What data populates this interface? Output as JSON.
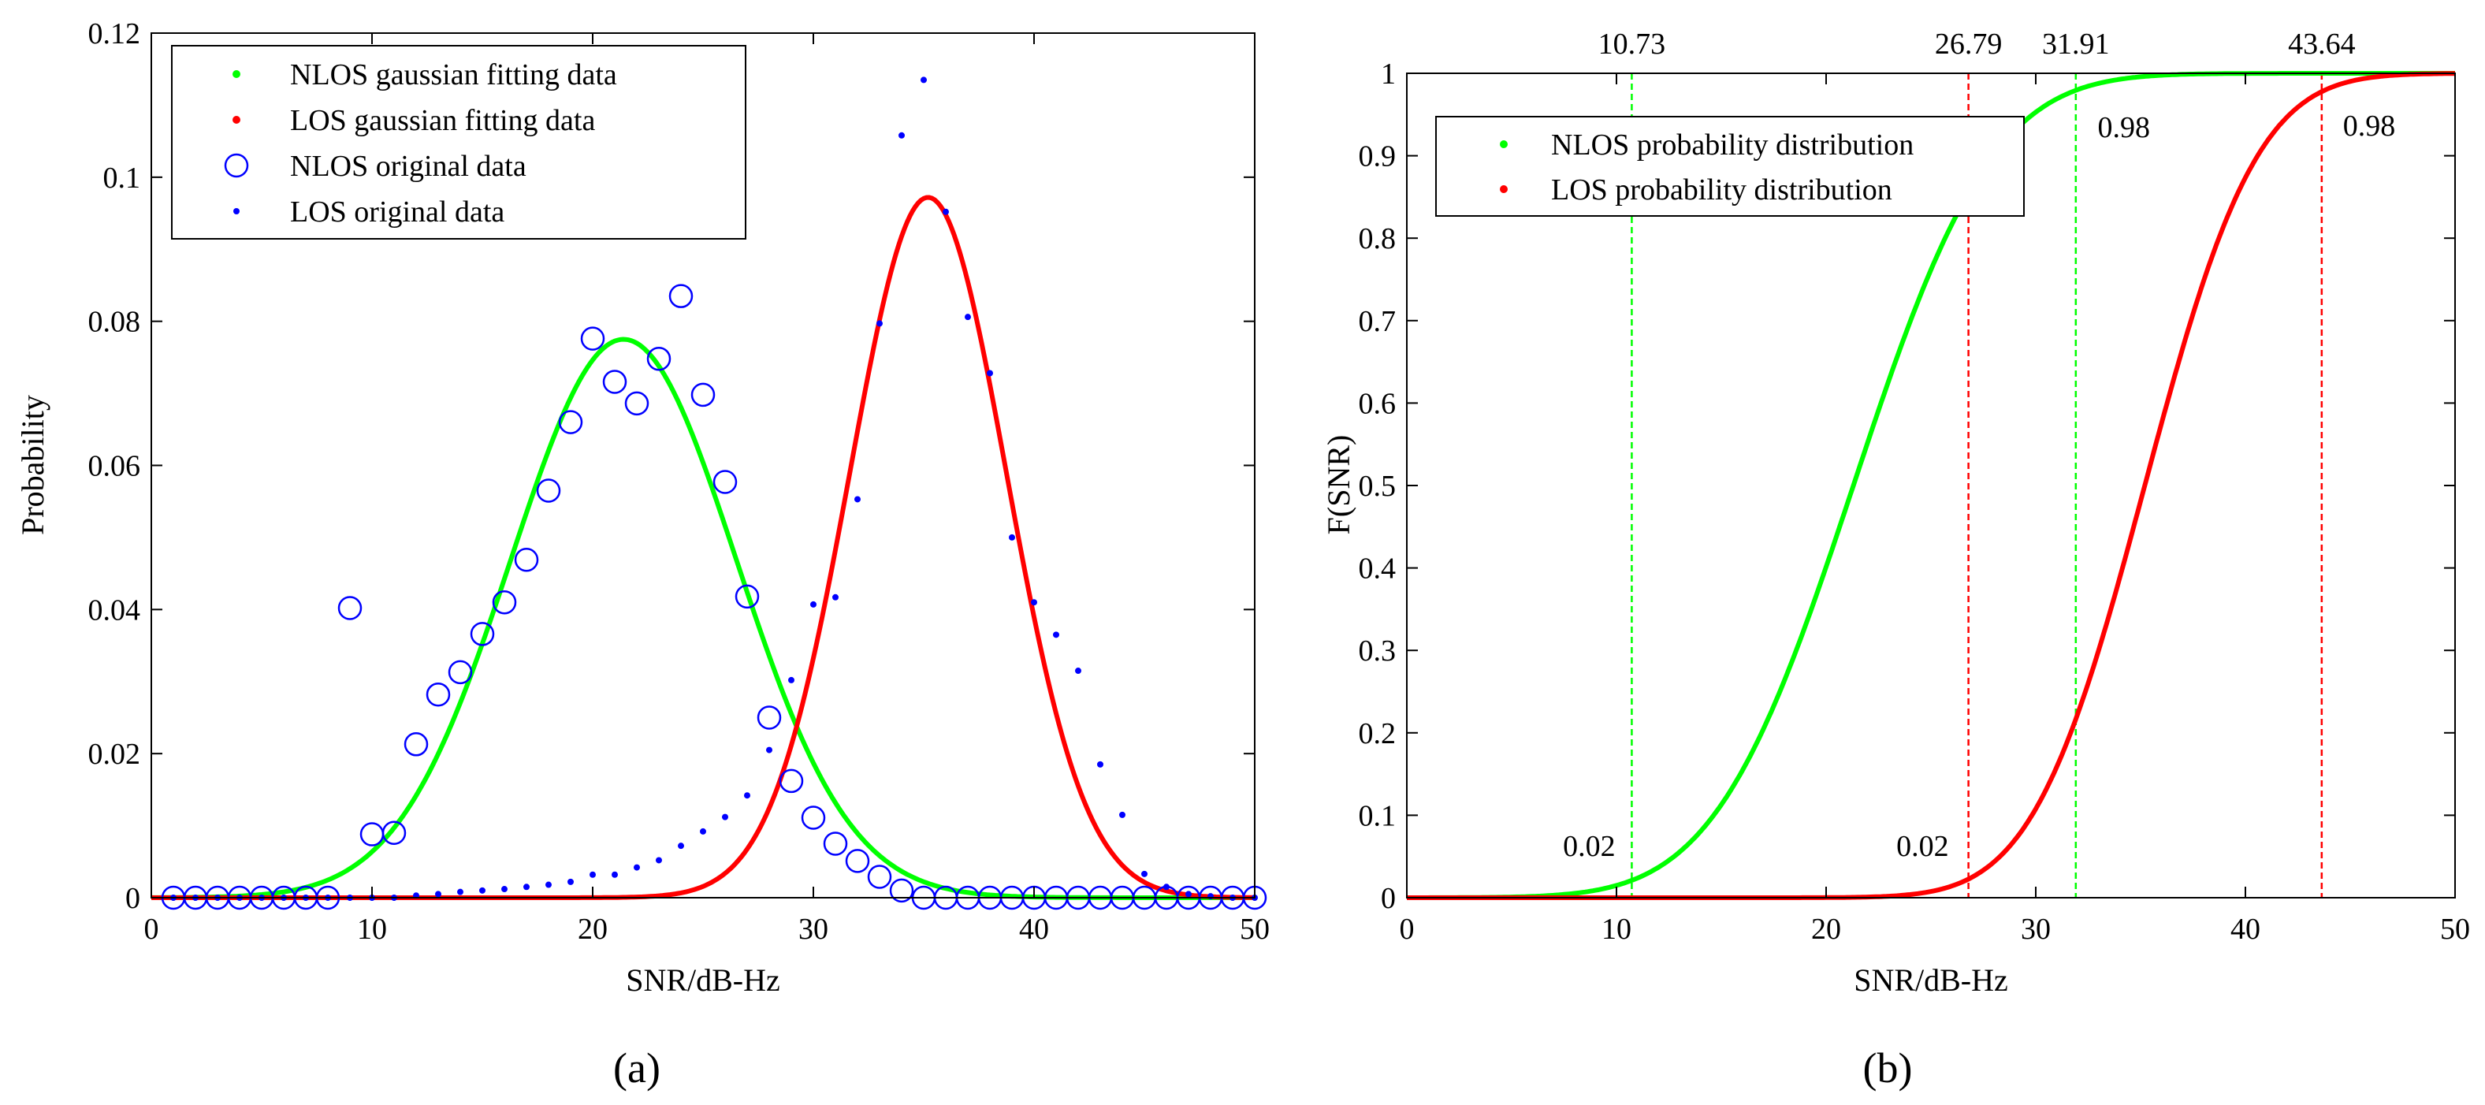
{
  "colors": {
    "nlos": "#00ff00",
    "los": "#ff0000",
    "original": "#0000ff"
  },
  "panel_a": {
    "caption": "(a)",
    "xlabel": "SNR/dB-Hz",
    "ylabel": "Probability",
    "xticks": [
      "0",
      "10",
      "20",
      "30",
      "40",
      "50"
    ],
    "yticks": [
      "0",
      "0.02",
      "0.04",
      "0.06",
      "0.08",
      "0.1",
      "0.12"
    ],
    "legend": [
      "NLOS gaussian fitting data",
      "LOS gaussian fitting data",
      "NLOS original data",
      "LOS original data"
    ]
  },
  "panel_b": {
    "caption": "(b)",
    "xlabel": "SNR/dB-Hz",
    "ylabel": "F(SNR)",
    "xticks": [
      "0",
      "10",
      "20",
      "30",
      "40",
      "50"
    ],
    "yticks": [
      "0",
      "0.1",
      "0.2",
      "0.3",
      "0.4",
      "0.5",
      "0.6",
      "0.7",
      "0.8",
      "0.9",
      "1"
    ],
    "legend": [
      "NLOS probability distribution",
      "LOS probability distribution"
    ],
    "top_labels": [
      "10.73",
      "26.79",
      "31.91",
      "43.64"
    ],
    "inner_labels": [
      "0.02",
      "0.02",
      "0.98",
      "0.98"
    ]
  },
  "chart_data": [
    {
      "type": "scatter",
      "title": "",
      "xlabel": "SNR/dB-Hz",
      "ylabel": "Probability",
      "xlim": [
        0,
        50
      ],
      "ylim": [
        0,
        0.12
      ],
      "grid": false,
      "legend_position": "top-left",
      "series": [
        {
          "name": "NLOS gaussian fitting data",
          "kind": "fitted_gaussian",
          "mean": 21.4,
          "sd": 5.1,
          "peak": 0.0775
        },
        {
          "name": "LOS gaussian fitting data",
          "kind": "fitted_gaussian",
          "mean": 35.2,
          "sd": 3.55,
          "peak": 0.0972
        },
        {
          "name": "NLOS original data",
          "x": [
            1,
            2,
            3,
            4,
            5,
            6,
            7,
            8,
            9,
            10,
            11,
            12,
            13,
            14,
            15,
            16,
            17,
            18,
            19,
            20,
            21,
            22,
            23,
            24,
            25,
            26,
            27,
            28,
            29,
            30,
            31,
            32,
            33,
            34,
            35,
            36,
            37,
            38,
            39,
            40,
            41,
            42,
            43,
            44,
            45,
            46,
            47,
            48,
            49,
            50
          ],
          "y": [
            0,
            0,
            0,
            0,
            0,
            0,
            0,
            0,
            0.0402,
            0.0088,
            0.009,
            0.0213,
            0.0282,
            0.0313,
            0.0366,
            0.041,
            0.0469,
            0.0565,
            0.066,
            0.0776,
            0.0716,
            0.0686,
            0.0748,
            0.0835,
            0.0698,
            0.0577,
            0.0418,
            0.025,
            0.0162,
            0.0111,
            0.0075,
            0.0051,
            0.0029,
            0.001,
            0,
            0,
            0,
            0,
            0,
            0,
            0,
            0,
            0,
            0,
            0,
            0,
            0,
            0,
            0,
            0
          ]
        },
        {
          "name": "LOS original data",
          "x": [
            1,
            2,
            3,
            4,
            5,
            6,
            7,
            8,
            9,
            10,
            11,
            12,
            13,
            14,
            15,
            16,
            17,
            18,
            19,
            20,
            21,
            22,
            23,
            24,
            25,
            26,
            27,
            28,
            29,
            30,
            31,
            32,
            33,
            34,
            35,
            36,
            37,
            38,
            39,
            40,
            41,
            42,
            43,
            44,
            45,
            46,
            47,
            48,
            49,
            50
          ],
          "y": [
            0,
            0,
            0,
            0,
            0,
            0,
            0,
            0,
            0,
            0,
            0,
            0.0003,
            0.0005,
            0.0008,
            0.001,
            0.0012,
            0.0015,
            0.0018,
            0.0022,
            0.0032,
            0.0032,
            0.0042,
            0.0052,
            0.0072,
            0.0092,
            0.0112,
            0.0142,
            0.0205,
            0.0302,
            0.0407,
            0.0417,
            0.0553,
            0.0797,
            0.1058,
            0.1135,
            0.0952,
            0.0806,
            0.0728,
            0.05,
            0.041,
            0.0365,
            0.0315,
            0.0185,
            0.0115,
            0.0033,
            0.0015,
            0.0005,
            0.0002,
            0,
            0
          ]
        }
      ]
    },
    {
      "type": "line",
      "title": "",
      "xlabel": "SNR/dB-Hz",
      "ylabel": "F(SNR)",
      "xlim": [
        0,
        50
      ],
      "ylim": [
        0,
        1
      ],
      "grid": false,
      "legend_position": "top-left",
      "series": [
        {
          "name": "NLOS probability distribution",
          "kind": "gaussian_cdf",
          "mean": 21.3,
          "sd": 5.2
        },
        {
          "name": "LOS probability distribution",
          "kind": "gaussian_cdf",
          "mean": 35.2,
          "sd": 4.2
        }
      ],
      "reference_lines": [
        {
          "x": 10.73,
          "series": "NLOS probability distribution",
          "label": "10.73",
          "probability": 0.02
        },
        {
          "x": 26.79,
          "series": "LOS probability distribution",
          "label": "26.79",
          "probability": 0.02
        },
        {
          "x": 31.91,
          "series": "NLOS probability distribution",
          "label": "31.91",
          "probability": 0.98
        },
        {
          "x": 43.64,
          "series": "LOS probability distribution",
          "label": "43.64",
          "probability": 0.98
        }
      ]
    }
  ]
}
